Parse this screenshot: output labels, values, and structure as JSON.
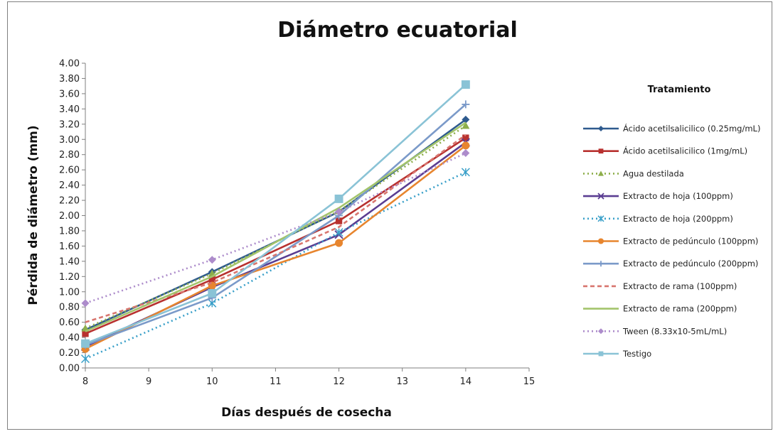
{
  "chart_data": {
    "type": "line",
    "title": "Diámetro ecuatorial",
    "xlabel": "Días después de cosecha",
    "ylabel": "Pérdida de diámetro (mm)",
    "xlim": [
      8,
      15
    ],
    "ylim": [
      0,
      4
    ],
    "x_ticks": [
      "8",
      "9",
      "10",
      "11",
      "12",
      "13",
      "14",
      "15"
    ],
    "y_ticks": [
      "0.00",
      "0.20",
      "0.40",
      "0.60",
      "0.80",
      "1.00",
      "1.20",
      "1.40",
      "1.60",
      "1.80",
      "2.00",
      "2.20",
      "2.40",
      "2.60",
      "2.80",
      "3.00",
      "3.20",
      "3.40",
      "3.60",
      "3.80",
      "4.00"
    ],
    "grid": false,
    "legend": {
      "title": "Tratamiento",
      "placement": "right"
    },
    "x": [
      8,
      10,
      12,
      14
    ],
    "series": [
      {
        "name": "Ácido acetilsalicilico (0.25mg/mL)",
        "values": [
          0.5,
          1.26,
          2.05,
          3.26
        ],
        "color": "#2e5a8e",
        "dash": "solid",
        "marker": "diamond"
      },
      {
        "name": "Ácido acetilsalicilico (1mg/mL)",
        "values": [
          0.45,
          1.16,
          1.93,
          3.02
        ],
        "color": "#b8312f",
        "dash": "solid",
        "marker": "square"
      },
      {
        "name": "Agua destilada",
        "values": [
          0.52,
          1.24,
          2.06,
          3.18
        ],
        "color": "#8dae4a",
        "dash": "dotted",
        "marker": "triangle"
      },
      {
        "name": "Extracto de hoja (100ppm)",
        "values": [
          0.28,
          1.06,
          1.75,
          2.96
        ],
        "color": "#5a3d92",
        "dash": "solid",
        "marker": "x"
      },
      {
        "name": "Extracto de hoja (200ppm)",
        "values": [
          0.12,
          0.85,
          1.78,
          2.57
        ],
        "color": "#3aa0c9",
        "dash": "dotted",
        "marker": "star"
      },
      {
        "name": "Extracto de pedúnculo (100ppm)",
        "values": [
          0.25,
          1.08,
          1.64,
          2.92
        ],
        "color": "#e7852e",
        "dash": "solid",
        "marker": "circle"
      },
      {
        "name": "Extracto de pedúnculo (200ppm)",
        "values": [
          0.3,
          0.92,
          2.0,
          3.46
        ],
        "color": "#7b9ac9",
        "dash": "solid",
        "marker": "plus"
      },
      {
        "name": "Extracto de rama (100ppm)",
        "values": [
          0.6,
          1.12,
          1.85,
          3.06
        ],
        "color": "#d8766f",
        "dash": "dashed",
        "marker": "none"
      },
      {
        "name": "Extracto de rama (200ppm)",
        "values": [
          0.48,
          1.2,
          2.1,
          3.22
        ],
        "color": "#a3c46b",
        "dash": "solid",
        "marker": "none"
      },
      {
        "name": "Tween (8.33x10-5mL/mL)",
        "values": [
          0.85,
          1.42,
          2.05,
          2.82
        ],
        "color": "#ad8ccb",
        "dash": "dotted",
        "marker": "diamond"
      },
      {
        "name": "Testigo",
        "values": [
          0.32,
          0.98,
          2.22,
          3.72
        ],
        "color": "#8ac3d6",
        "dash": "solid",
        "marker": "square"
      }
    ]
  }
}
